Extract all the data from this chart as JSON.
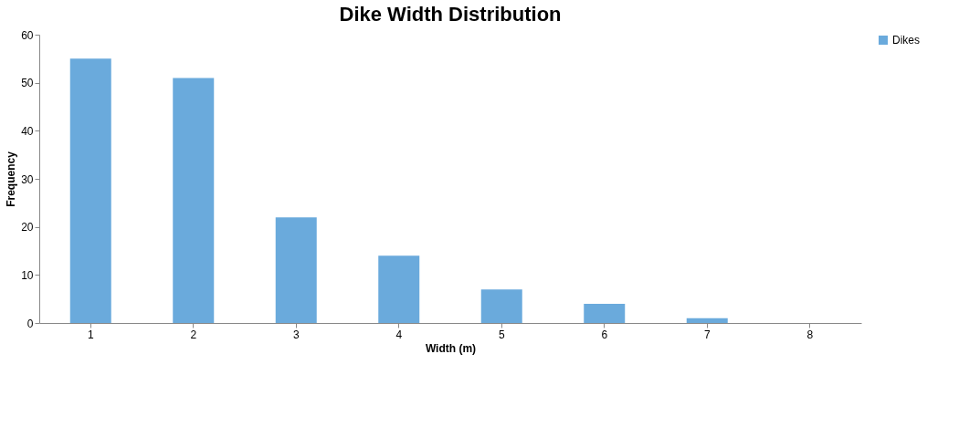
{
  "chart_data": {
    "type": "bar",
    "title": "Dike Width Distribution",
    "xlabel": "Width (m)",
    "ylabel": "Frequency",
    "categories": [
      "1",
      "2",
      "3",
      "4",
      "5",
      "6",
      "7",
      "8"
    ],
    "series": [
      {
        "name": "Dikes",
        "color": "#6aaadc",
        "values": [
          55,
          51,
          22,
          14,
          7,
          4,
          1,
          0
        ]
      }
    ],
    "ylim": [
      0,
      60
    ],
    "yticks": [
      0,
      10,
      20,
      30,
      40,
      50,
      60
    ],
    "grid": false,
    "legend": "right"
  }
}
